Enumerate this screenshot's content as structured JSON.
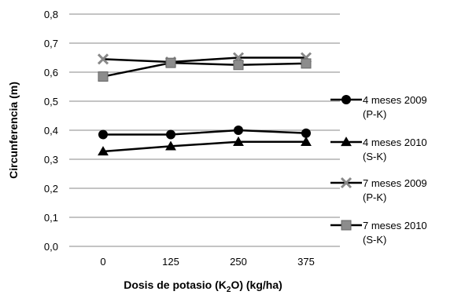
{
  "chart_data": {
    "type": "line",
    "categories": [
      "0",
      "125",
      "250",
      "375"
    ],
    "xlabel": "Dosis de potasio (K",
    "xlabel_sub": "2",
    "xlabel_tail": "O) (kg/ha)",
    "ylabel": "Circunferencia (m)",
    "ylim": [
      0,
      0.8
    ],
    "yticks": [
      "0,0",
      "0,1",
      "0,2",
      "0,3",
      "0,4",
      "0,5",
      "0,6",
      "0,7",
      "0,8"
    ],
    "grid": true,
    "legend_position": "right",
    "series": [
      {
        "name_line1": "4 meses 2009",
        "name_line2": "(P-K)",
        "marker": "circle",
        "color": "#000000",
        "values": [
          0.385,
          0.385,
          0.4,
          0.39
        ]
      },
      {
        "name_line1": "4 meses 2010",
        "name_line2": "(S-K)",
        "marker": "triangle",
        "color": "#000000",
        "values": [
          0.327,
          0.345,
          0.36,
          0.36
        ]
      },
      {
        "name_line1": "7 meses 2009",
        "name_line2": "(P-K)",
        "marker": "x",
        "color": "#000000",
        "marker_color": "#888888",
        "values": [
          0.645,
          0.635,
          0.65,
          0.65
        ]
      },
      {
        "name_line1": "7 meses 2010",
        "name_line2": "(S-K)",
        "marker": "square",
        "color": "#000000",
        "marker_color": "#8c8c8c",
        "values": [
          0.585,
          0.632,
          0.625,
          0.63
        ]
      }
    ]
  }
}
